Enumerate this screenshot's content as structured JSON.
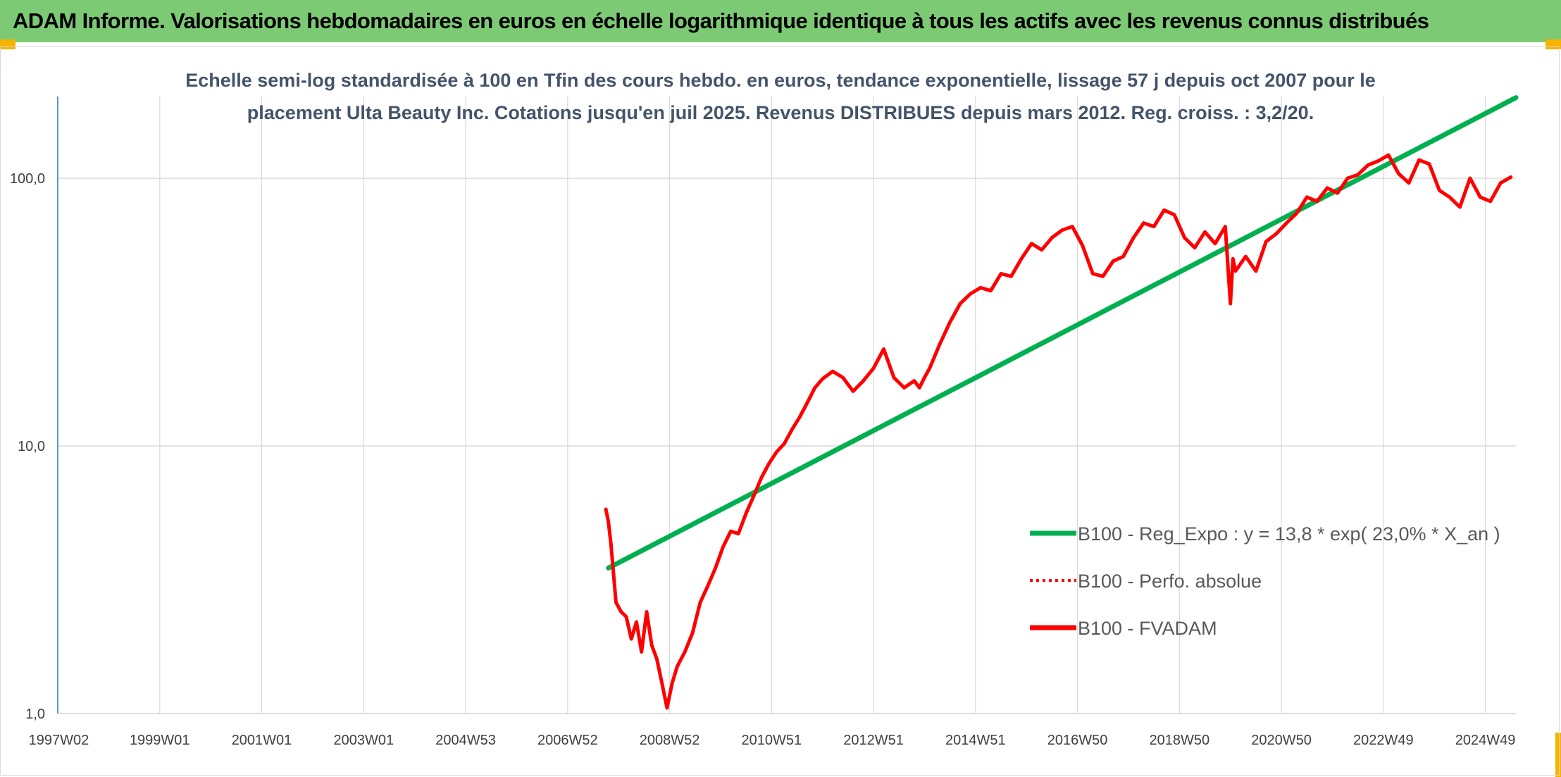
{
  "banner": {
    "title": "ADAM Informe. Valorisations hebdomadaires en euros en échelle logarithmique identique à tous les actifs avec les revenus connus distribués"
  },
  "colors": {
    "banner_bg": "#7ccb74",
    "corner_accent": "#f4b400",
    "trend_line": "#00b050",
    "fvadam_line": "#ff0000",
    "perf_line": "#ff0000",
    "title_text": "#44546a"
  },
  "chart_data": {
    "type": "line",
    "title_lines": [
      "Echelle semi-log standardisée à 100 en Tfin des cours hebdo. en euros, tendance exponentielle, lissage 57 j depuis oct 2007 pour le",
      "placement Ulta Beauty Inc. Cotations jusqu'en juil 2025. Revenus DISTRIBUES depuis mars 2012. Reg. croiss. : 3,2/20."
    ],
    "y_scale": "log",
    "ylim": [
      1,
      200
    ],
    "yticks": [
      {
        "value": 1,
        "label": "1,0"
      },
      {
        "value": 10,
        "label": "10,0"
      },
      {
        "value": 100,
        "label": "100,0"
      }
    ],
    "xlim": [
      1997.0,
      2025.6
    ],
    "xticks": [
      {
        "value": 1997.02,
        "label": "1997W02"
      },
      {
        "value": 1999.0,
        "label": "1999W01"
      },
      {
        "value": 2001.0,
        "label": "2001W01"
      },
      {
        "value": 2003.0,
        "label": "2003W01"
      },
      {
        "value": 2005.0,
        "label": "2004W53"
      },
      {
        "value": 2007.0,
        "label": "2006W52"
      },
      {
        "value": 2009.0,
        "label": "2008W52"
      },
      {
        "value": 2011.0,
        "label": "2010W51"
      },
      {
        "value": 2013.0,
        "label": "2012W51"
      },
      {
        "value": 2015.0,
        "label": "2014W51"
      },
      {
        "value": 2017.0,
        "label": "2016W50"
      },
      {
        "value": 2019.0,
        "label": "2018W50"
      },
      {
        "value": 2021.0,
        "label": "2020W50"
      },
      {
        "value": 2023.0,
        "label": "2022W49"
      },
      {
        "value": 2025.0,
        "label": "2024W49"
      }
    ],
    "grid": "vertical and horizontal",
    "legend_position": "bottom-right",
    "series": [
      {
        "name": "B100 - Reg_Expo : y = 13,8 * exp( 23,0% *  X_an )",
        "style": "solid",
        "color": "#00b050",
        "x": [
          2007.8,
          2025.6
        ],
        "y": [
          3.5,
          200
        ]
      },
      {
        "name": "B100 - Perfo. absolue",
        "style": "dotted",
        "color": "#ff0000",
        "x": [],
        "y": []
      },
      {
        "name": "B100 - FVADAM",
        "style": "solid",
        "color": "#ff0000",
        "x": [
          2007.75,
          2007.8,
          2007.85,
          2007.95,
          2008.05,
          2008.15,
          2008.25,
          2008.35,
          2008.45,
          2008.55,
          2008.65,
          2008.75,
          2008.85,
          2008.95,
          2009.05,
          2009.15,
          2009.3,
          2009.45,
          2009.6,
          2009.75,
          2009.9,
          2010.05,
          2010.2,
          2010.35,
          2010.5,
          2010.65,
          2010.8,
          2010.95,
          2011.1,
          2011.25,
          2011.4,
          2011.55,
          2011.7,
          2011.85,
          2012.0,
          2012.2,
          2012.4,
          2012.6,
          2012.8,
          2013.0,
          2013.2,
          2013.4,
          2013.6,
          2013.8,
          2013.9,
          2014.0,
          2014.1,
          2014.3,
          2014.5,
          2014.7,
          2014.9,
          2015.1,
          2015.3,
          2015.5,
          2015.7,
          2015.9,
          2016.1,
          2016.3,
          2016.5,
          2016.7,
          2016.9,
          2017.1,
          2017.3,
          2017.5,
          2017.7,
          2017.9,
          2018.1,
          2018.3,
          2018.5,
          2018.7,
          2018.9,
          2019.1,
          2019.3,
          2019.5,
          2019.7,
          2019.9,
          2020.0,
          2020.05,
          2020.1,
          2020.3,
          2020.5,
          2020.7,
          2020.9,
          2021.1,
          2021.3,
          2021.5,
          2021.7,
          2021.9,
          2022.1,
          2022.3,
          2022.5,
          2022.7,
          2022.9,
          2023.1,
          2023.3,
          2023.5,
          2023.7,
          2023.9,
          2024.1,
          2024.3,
          2024.5,
          2024.7,
          2024.9,
          2025.1,
          2025.3,
          2025.5
        ],
        "y": [
          5.8,
          5.2,
          4.3,
          2.6,
          2.4,
          2.3,
          1.9,
          2.2,
          1.7,
          2.4,
          1.8,
          1.6,
          1.3,
          1.05,
          1.3,
          1.5,
          1.7,
          2.0,
          2.6,
          3.0,
          3.5,
          4.2,
          4.8,
          4.7,
          5.6,
          6.5,
          7.6,
          8.6,
          9.5,
          10.2,
          11.5,
          12.8,
          14.5,
          16.5,
          17.8,
          19.0,
          18.0,
          16.0,
          17.5,
          19.5,
          23.0,
          18.0,
          16.5,
          17.5,
          16.5,
          18.0,
          19.5,
          24.0,
          29.0,
          34.0,
          37.0,
          39.0,
          38.0,
          44.0,
          43.0,
          50.0,
          57.0,
          54.0,
          60.0,
          64.0,
          66.0,
          56.0,
          44.0,
          43.0,
          49.0,
          51.0,
          60.0,
          68.0,
          66.0,
          76.0,
          73.0,
          60.0,
          55.0,
          63.0,
          57.0,
          66.0,
          34.0,
          50.0,
          45.0,
          51.0,
          45.0,
          58.0,
          62.0,
          68.0,
          74.0,
          85.0,
          82.0,
          92.0,
          88.0,
          100.0,
          103.0,
          112.0,
          116.0,
          122.0,
          104.0,
          96.0,
          117.0,
          113.0,
          90.0,
          85.0,
          78.0,
          100.0,
          85.0,
          82.0,
          96.0,
          101.0
        ]
      }
    ]
  }
}
